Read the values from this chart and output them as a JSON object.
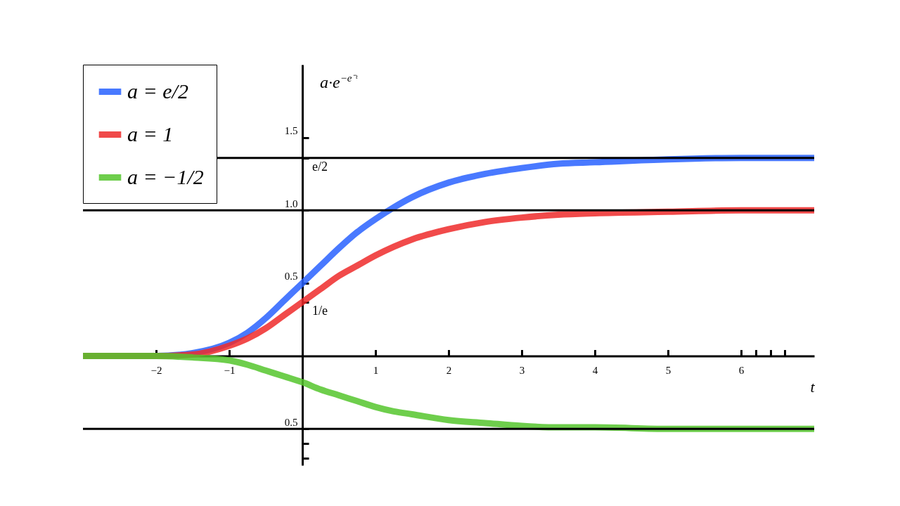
{
  "chart_data": {
    "type": "line",
    "ylabel": "a·e$^{−e⁻ᵗ}$",
    "xlabel": "t",
    "x": [
      -3,
      -2.5,
      -2,
      -1.5,
      -1,
      -0.75,
      -0.5,
      -0.25,
      0,
      0.25,
      0.5,
      0.75,
      1,
      1.25,
      1.5,
      2,
      2.5,
      3,
      3.5,
      4,
      5,
      6,
      7
    ],
    "series": [
      {
        "name": "a = e/2",
        "color": "#2962ff",
        "values": [
          0,
          0,
          0,
          0.02,
          0.09,
          0.16,
          0.26,
          0.38,
          0.5,
          0.62,
          0.74,
          0.85,
          0.94,
          1.02,
          1.09,
          1.19,
          1.25,
          1.29,
          1.32,
          1.33,
          1.35,
          1.36,
          1.36
        ]
      },
      {
        "name": "a = 1",
        "color": "#ee2a2a",
        "values": [
          0,
          0,
          0,
          0.01,
          0.07,
          0.12,
          0.19,
          0.28,
          0.37,
          0.46,
          0.55,
          0.62,
          0.69,
          0.75,
          0.8,
          0.87,
          0.92,
          0.95,
          0.97,
          0.98,
          0.99,
          1.0,
          1.0
        ]
      },
      {
        "name": "a = −1/2",
        "color": "#55c62d",
        "values": [
          0,
          0,
          0,
          -0.01,
          -0.03,
          -0.06,
          -0.1,
          -0.14,
          -0.18,
          -0.23,
          -0.27,
          -0.31,
          -0.35,
          -0.38,
          -0.4,
          -0.44,
          -0.46,
          -0.48,
          -0.49,
          -0.49,
          -0.5,
          -0.5,
          -0.5
        ]
      }
    ],
    "xlim": [
      -3,
      7
    ],
    "ylim": [
      -0.75,
      2
    ],
    "xticks": [
      {
        "value": -2,
        "label": "−2"
      },
      {
        "value": -1,
        "label": "−1"
      },
      1,
      2,
      3,
      4,
      5,
      6,
      {
        "value": 6.2,
        "label": null
      },
      {
        "value": 6.4,
        "label": null
      },
      {
        "value": 6.6,
        "label": null
      }
    ],
    "yticks": [
      {
        "value": -0.7,
        "label": null
      },
      {
        "value": -0.6,
        "label": null
      },
      {
        "value": -0.5,
        "label": "0.5"
      },
      {
        "value": 0.3679,
        "label": null
      },
      0.5,
      {
        "value": 1,
        "label": "1.0"
      },
      {
        "value": 1.3591,
        "label": null
      },
      1.5
    ],
    "ref_lines": [
      {
        "axis": "y",
        "value": 1,
        "color": "#000000"
      },
      {
        "axis": "y",
        "value": 1.3591,
        "color": "#000000"
      },
      {
        "axis": "y",
        "value": -0.5,
        "color": "#000000"
      }
    ],
    "annotations": [
      {
        "text": "1/e",
        "x": 0,
        "y": 0.3679
      },
      {
        "text": "e/2",
        "x": 0,
        "y": 1.3591
      }
    ],
    "legend": "top left",
    "grid": false,
    "line_style": "solid",
    "marker": "none"
  }
}
